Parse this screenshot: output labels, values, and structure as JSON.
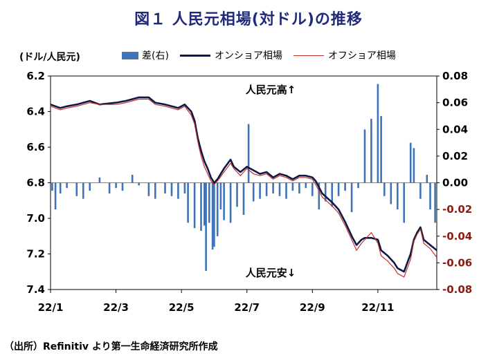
{
  "title": "図１ 人民元相場(対ドル)の推移",
  "source_note": "（出所）Refinitiv より第一生命経済研究所作成",
  "colors": {
    "onshore": "#0d1846",
    "offshore": "#c0302b",
    "diff": "#3f73b8",
    "right_neg": "#8b1a12"
  },
  "chart_data": {
    "type": "line",
    "ylabel_left": "(ドル/人民元)",
    "legend": [
      {
        "key": "diff",
        "label": "差(右)"
      },
      {
        "key": "onshore",
        "label": "オンショア相場"
      },
      {
        "key": "offshore",
        "label": "オフショア相場"
      }
    ],
    "annotations": {
      "up": "人民元高↑",
      "down": "人民元安↓"
    },
    "x_ticks": [
      "22/1",
      "22/3",
      "22/5",
      "22/7",
      "22/9",
      "22/11"
    ],
    "left_axis": {
      "min": 6.2,
      "max": 7.4,
      "inverted": true,
      "ticks": [
        "6.2",
        "6.4",
        "6.6",
        "6.8",
        "7.0",
        "7.2",
        "7.4"
      ]
    },
    "right_axis": {
      "min": -0.08,
      "max": 0.08,
      "ticks": [
        "0.08",
        "0.06",
        "0.04",
        "0.02",
        "0.00",
        "-0.02",
        "-0.04",
        "-0.06",
        "-0.08"
      ]
    },
    "x_range_months": [
      0,
      11.8
    ],
    "onshore": [
      [
        0,
        6.36
      ],
      [
        0.15,
        6.37
      ],
      [
        0.3,
        6.38
      ],
      [
        0.5,
        6.37
      ],
      [
        0.8,
        6.36
      ],
      [
        1.0,
        6.35
      ],
      [
        1.2,
        6.34
      ],
      [
        1.5,
        6.36
      ],
      [
        2.0,
        6.35
      ],
      [
        2.3,
        6.34
      ],
      [
        2.5,
        6.33
      ],
      [
        2.7,
        6.32
      ],
      [
        3.0,
        6.32
      ],
      [
        3.2,
        6.35
      ],
      [
        3.5,
        6.36
      ],
      [
        3.9,
        6.38
      ],
      [
        4.1,
        6.36
      ],
      [
        4.3,
        6.4
      ],
      [
        4.4,
        6.45
      ],
      [
        4.5,
        6.55
      ],
      [
        4.6,
        6.62
      ],
      [
        4.7,
        6.68
      ],
      [
        4.8,
        6.72
      ],
      [
        4.9,
        6.77
      ],
      [
        5.0,
        6.8
      ],
      [
        5.1,
        6.78
      ],
      [
        5.3,
        6.72
      ],
      [
        5.5,
        6.67
      ],
      [
        5.6,
        6.71
      ],
      [
        5.8,
        6.74
      ],
      [
        6.0,
        6.71
      ],
      [
        6.2,
        6.73
      ],
      [
        6.4,
        6.75
      ],
      [
        6.6,
        6.74
      ],
      [
        6.8,
        6.77
      ],
      [
        7.0,
        6.75
      ],
      [
        7.2,
        6.76
      ],
      [
        7.4,
        6.78
      ],
      [
        7.6,
        6.76
      ],
      [
        7.8,
        6.76
      ],
      [
        8.0,
        6.77
      ],
      [
        8.1,
        6.79
      ],
      [
        8.3,
        6.86
      ],
      [
        8.6,
        6.91
      ],
      [
        8.8,
        6.95
      ],
      [
        9.0,
        7.02
      ],
      [
        9.2,
        7.1
      ],
      [
        9.35,
        7.15
      ],
      [
        9.5,
        7.12
      ],
      [
        9.6,
        7.11
      ],
      [
        9.8,
        7.11
      ],
      [
        10.0,
        7.12
      ],
      [
        10.1,
        7.18
      ],
      [
        10.3,
        7.21
      ],
      [
        10.5,
        7.25
      ],
      [
        10.6,
        7.28
      ],
      [
        10.8,
        7.3
      ],
      [
        10.9,
        7.25
      ],
      [
        11.0,
        7.2
      ],
      [
        11.1,
        7.12
      ],
      [
        11.2,
        7.08
      ],
      [
        11.3,
        7.05
      ],
      [
        11.4,
        7.12
      ],
      [
        11.6,
        7.15
      ],
      [
        11.8,
        7.18
      ]
    ],
    "offshore": [
      [
        0,
        6.37
      ],
      [
        0.15,
        6.38
      ],
      [
        0.3,
        6.39
      ],
      [
        0.5,
        6.38
      ],
      [
        0.8,
        6.37
      ],
      [
        1.0,
        6.36
      ],
      [
        1.2,
        6.35
      ],
      [
        1.5,
        6.36
      ],
      [
        2.0,
        6.36
      ],
      [
        2.3,
        6.35
      ],
      [
        2.5,
        6.34
      ],
      [
        2.7,
        6.33
      ],
      [
        3.0,
        6.33
      ],
      [
        3.2,
        6.36
      ],
      [
        3.5,
        6.37
      ],
      [
        3.9,
        6.39
      ],
      [
        4.1,
        6.37
      ],
      [
        4.3,
        6.42
      ],
      [
        4.4,
        6.47
      ],
      [
        4.5,
        6.57
      ],
      [
        4.6,
        6.65
      ],
      [
        4.7,
        6.71
      ],
      [
        4.8,
        6.75
      ],
      [
        4.9,
        6.79
      ],
      [
        5.0,
        6.81
      ],
      [
        5.1,
        6.79
      ],
      [
        5.3,
        6.74
      ],
      [
        5.5,
        6.69
      ],
      [
        5.6,
        6.72
      ],
      [
        5.8,
        6.76
      ],
      [
        6.0,
        6.72
      ],
      [
        6.2,
        6.75
      ],
      [
        6.4,
        6.76
      ],
      [
        6.6,
        6.75
      ],
      [
        6.8,
        6.78
      ],
      [
        7.0,
        6.76
      ],
      [
        7.2,
        6.77
      ],
      [
        7.4,
        6.79
      ],
      [
        7.6,
        6.77
      ],
      [
        7.8,
        6.77
      ],
      [
        8.0,
        6.78
      ],
      [
        8.1,
        6.81
      ],
      [
        8.3,
        6.88
      ],
      [
        8.6,
        6.93
      ],
      [
        8.8,
        6.97
      ],
      [
        9.0,
        7.04
      ],
      [
        9.2,
        7.12
      ],
      [
        9.35,
        7.18
      ],
      [
        9.5,
        7.14
      ],
      [
        9.6,
        7.12
      ],
      [
        9.8,
        7.08
      ],
      [
        10.0,
        7.14
      ],
      [
        10.1,
        7.21
      ],
      [
        10.3,
        7.24
      ],
      [
        10.5,
        7.28
      ],
      [
        10.6,
        7.31
      ],
      [
        10.8,
        7.33
      ],
      [
        10.9,
        7.28
      ],
      [
        11.0,
        7.23
      ],
      [
        11.1,
        7.13
      ],
      [
        11.2,
        7.09
      ],
      [
        11.3,
        7.06
      ],
      [
        11.4,
        7.14
      ],
      [
        11.6,
        7.17
      ],
      [
        11.8,
        7.22
      ]
    ],
    "diff": [
      [
        0.05,
        -0.006
      ],
      [
        0.15,
        -0.02
      ],
      [
        0.3,
        -0.008
      ],
      [
        0.5,
        -0.004
      ],
      [
        0.8,
        -0.01
      ],
      [
        1.0,
        -0.012
      ],
      [
        1.2,
        -0.006
      ],
      [
        1.5,
        0.004
      ],
      [
        1.8,
        -0.008
      ],
      [
        2.0,
        -0.004
      ],
      [
        2.2,
        -0.006
      ],
      [
        2.5,
        0.006
      ],
      [
        2.7,
        -0.002
      ],
      [
        3.0,
        -0.01
      ],
      [
        3.2,
        -0.012
      ],
      [
        3.5,
        -0.008
      ],
      [
        3.7,
        -0.01
      ],
      [
        3.9,
        -0.012
      ],
      [
        4.1,
        -0.008
      ],
      [
        4.2,
        -0.03
      ],
      [
        4.4,
        -0.034
      ],
      [
        4.6,
        -0.036
      ],
      [
        4.7,
        -0.032
      ],
      [
        4.75,
        -0.066
      ],
      [
        4.85,
        -0.03
      ],
      [
        4.95,
        -0.05
      ],
      [
        5.0,
        -0.048
      ],
      [
        5.1,
        -0.04
      ],
      [
        5.2,
        -0.02
      ],
      [
        5.3,
        -0.028
      ],
      [
        5.5,
        -0.03
      ],
      [
        5.7,
        -0.018
      ],
      [
        5.9,
        -0.024
      ],
      [
        6.05,
        0.044
      ],
      [
        6.2,
        -0.014
      ],
      [
        6.4,
        -0.012
      ],
      [
        6.6,
        -0.01
      ],
      [
        6.8,
        -0.008
      ],
      [
        7.0,
        -0.01
      ],
      [
        7.2,
        -0.012
      ],
      [
        7.4,
        -0.006
      ],
      [
        7.6,
        -0.008
      ],
      [
        7.8,
        -0.004
      ],
      [
        8.0,
        -0.01
      ],
      [
        8.2,
        -0.02
      ],
      [
        8.4,
        -0.014
      ],
      [
        8.6,
        -0.018
      ],
      [
        8.8,
        -0.01
      ],
      [
        9.0,
        -0.006
      ],
      [
        9.2,
        -0.022
      ],
      [
        9.4,
        -0.004
      ],
      [
        9.6,
        0.04
      ],
      [
        9.8,
        0.048
      ],
      [
        10.0,
        0.074
      ],
      [
        10.1,
        0.05
      ],
      [
        10.2,
        -0.01
      ],
      [
        10.4,
        -0.016
      ],
      [
        10.6,
        -0.02
      ],
      [
        10.8,
        -0.03
      ],
      [
        11.0,
        0.03
      ],
      [
        11.1,
        0.026
      ],
      [
        11.3,
        -0.012
      ],
      [
        11.5,
        0.006
      ],
      [
        11.6,
        -0.02
      ],
      [
        11.75,
        -0.03
      ]
    ]
  }
}
